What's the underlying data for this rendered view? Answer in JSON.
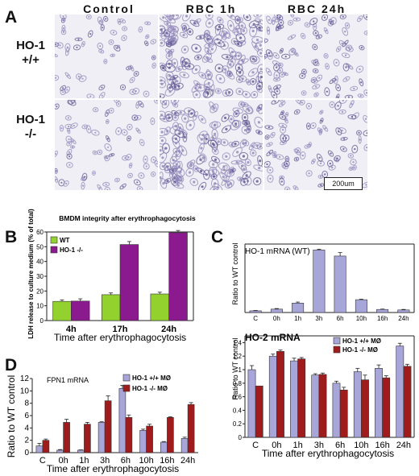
{
  "figure": {
    "panel_a": {
      "label": "A",
      "columns": [
        "Control",
        "RBC 1h",
        "RBC 24h"
      ],
      "rows": [
        {
          "line1": "HO-1",
          "line2": "+/+"
        },
        {
          "line1": "HO-1",
          "line2": "-/-"
        }
      ],
      "scale_bar": "200um",
      "image_palette": {
        "background": "#f1eff6",
        "cell": "#8f86b8",
        "cell_dark": "#5d5491"
      }
    },
    "panel_b": {
      "label": "B"
    },
    "panel_c": {
      "label": "C"
    },
    "panel_d": {
      "label": "D"
    }
  },
  "chart_data": [
    {
      "id": "B",
      "type": "bar",
      "title": "BMDM integrity after erythrophagocytosis",
      "xlabel": "Time after erythrophagocytosis",
      "ylabel": "LDH release to culture medium (% of total)",
      "ylim": [
        0,
        60
      ],
      "yticks": [
        0,
        10,
        20,
        30,
        40,
        50,
        60
      ],
      "categories": [
        "4h",
        "17h",
        "24h"
      ],
      "legend_position": "top-left",
      "series": [
        {
          "name": "WT",
          "color": "#93d12e",
          "values": [
            13,
            17.5,
            18
          ],
          "errors": [
            1,
            1.2,
            1.2
          ]
        },
        {
          "name": "HO-1 -/-",
          "color": "#8b1a8f",
          "values": [
            13.2,
            51.5,
            59.5
          ],
          "errors": [
            1.5,
            2,
            1.5
          ]
        }
      ]
    },
    {
      "id": "C-top",
      "type": "bar",
      "title": "HO-1 mRNA (WT)",
      "ylabel": "Ratio to WT control",
      "categories": [
        "C",
        "0h",
        "1h",
        "3h",
        "6h",
        "10h",
        "16h",
        "24h"
      ],
      "ylim": [
        0,
        40
      ],
      "series": [
        {
          "color": "#a8a6d9",
          "values": [
            1,
            2,
            5.5,
            36.5,
            33,
            7.5,
            1.8,
            1.5
          ],
          "errors": [
            0.2,
            0.3,
            0.6,
            0.5,
            2,
            0.3,
            0.2,
            0.3
          ]
        }
      ]
    },
    {
      "id": "C-bottom",
      "type": "bar",
      "title": "HO-2 mRNA",
      "ylabel": "Ratio to WT control",
      "xlabel": "Time after erythrophagocytosis",
      "categories": [
        "C",
        "0h",
        "1h",
        "3h",
        "6h",
        "10h",
        "16h",
        "24h"
      ],
      "ylim": [
        0,
        1.5
      ],
      "yticks": [
        "0",
        "0.2",
        "0.4",
        "0.6",
        "0.8",
        "1",
        "1.2",
        "1.4"
      ],
      "legend_position": "top-right",
      "series": [
        {
          "name": "HO-1 +/+ MØ",
          "color": "#a8a6d9",
          "values": [
            1.0,
            1.2,
            1.13,
            0.92,
            0.8,
            0.97,
            1.02,
            1.35
          ],
          "errors": [
            0.06,
            0.03,
            0.04,
            0.02,
            0.03,
            0.05,
            0.05,
            0.04
          ]
        },
        {
          "name": "HO-1 -/- MØ",
          "color": "#a01c1c",
          "values": [
            0.76,
            1.27,
            1.16,
            0.93,
            0.7,
            0.85,
            0.88,
            1.05
          ],
          "errors": [
            0.0,
            0.02,
            0.02,
            0.02,
            0.04,
            0.07,
            0.03,
            0.03
          ]
        }
      ]
    },
    {
      "id": "D",
      "type": "bar",
      "title": "FPN1 mRNA",
      "ylabel": "Ratio to WT control",
      "xlabel": "Time after erythrophagocytosis",
      "categories": [
        "C",
        "0h",
        "1h",
        "3h",
        "6h",
        "10h",
        "16h",
        "24h"
      ],
      "ylim": [
        0,
        12
      ],
      "yticks": [
        0,
        2,
        4,
        6,
        8,
        10,
        12
      ],
      "legend_position": "top-right",
      "series": [
        {
          "name": "HO-1 +/+ MØ",
          "color": "#a8a6d9",
          "values": [
            1.1,
            0.4,
            0.4,
            4.9,
            10.4,
            3.6,
            1.7,
            2.3
          ],
          "errors": [
            0.4,
            0.1,
            0.05,
            0.1,
            0.5,
            0.2,
            0.1,
            0.2
          ]
        },
        {
          "name": "HO-1 -/- MØ",
          "color": "#a01c1c",
          "values": [
            2.0,
            4.9,
            4.6,
            8.4,
            5.7,
            4.3,
            5.7,
            7.8
          ],
          "errors": [
            0.2,
            0.5,
            0.3,
            0.8,
            0.4,
            0.3,
            0.1,
            0.3
          ]
        }
      ]
    }
  ]
}
